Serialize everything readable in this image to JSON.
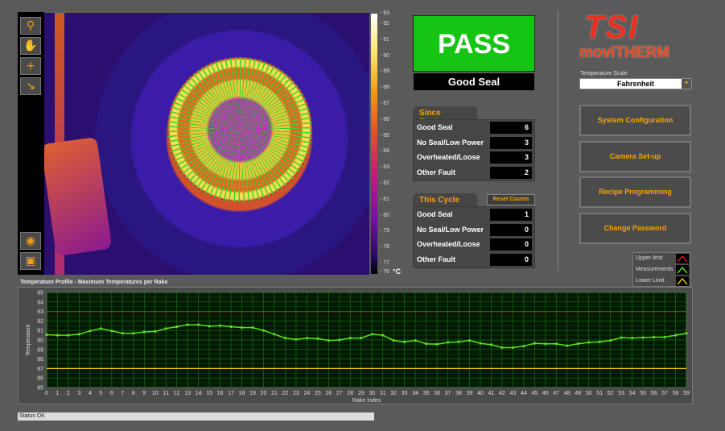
{
  "toolbar": {
    "tools": [
      "zoom-icon",
      "pan-hand-icon",
      "crosshair-icon",
      "zoom-fit-icon",
      "palette-icon",
      "snapshot-icon"
    ]
  },
  "colorbar": {
    "ticks": [
      "93",
      "92",
      "91",
      "90",
      "89",
      "88",
      "87",
      "86",
      "85",
      "84",
      "83",
      "82",
      "81",
      "80",
      "79",
      "78",
      "77",
      "76"
    ],
    "unit": "°C"
  },
  "result": {
    "status": "PASS",
    "detail": "Good Seal",
    "color": "#16c514"
  },
  "since_startup": {
    "title": "Since Startup",
    "rows": [
      {
        "label": "Good Seal",
        "value": "6"
      },
      {
        "label": "No Seal/Low Power",
        "value": "3"
      },
      {
        "label": "Overheated/Loose",
        "value": "3"
      },
      {
        "label": "Other Fault",
        "value": "2"
      }
    ]
  },
  "this_cycle": {
    "title": "This Cycle",
    "reset_label": "Reset Counts",
    "rows": [
      {
        "label": "Good Seal",
        "value": "1"
      },
      {
        "label": "No Seal/Low Power",
        "value": "0"
      },
      {
        "label": "Overheated/Loose",
        "value": "0"
      },
      {
        "label": "Other Fault",
        "value": "0"
      }
    ]
  },
  "logo": {
    "line1": "TSI",
    "line2": "moviTHERM"
  },
  "temperature_scale": {
    "label": "Temperature Scale",
    "value": "Fahrenheit"
  },
  "buttons": [
    "System Configuration",
    "Camera Set-up",
    "Recipe Programming",
    "Change Password"
  ],
  "legend": [
    {
      "label": "Upper limit",
      "color": "#e01010"
    },
    {
      "label": "Measurements",
      "color": "#5be01a"
    },
    {
      "label": "Lower Limit",
      "color": "#f0c000"
    }
  ],
  "status": "Status OK",
  "chart_data": {
    "type": "line",
    "title": "Temperature Profile - Maximum Temperatures per Rake",
    "xlabel": "Rake Index",
    "ylabel": "Temperature",
    "xlim": [
      0,
      59
    ],
    "ylim": [
      85,
      95
    ],
    "grid": true,
    "yticks": [
      85,
      86,
      87,
      88,
      89,
      90,
      91,
      92,
      93,
      94,
      95
    ],
    "x": [
      0,
      1,
      2,
      3,
      4,
      5,
      6,
      7,
      8,
      9,
      10,
      11,
      12,
      13,
      14,
      15,
      16,
      17,
      18,
      19,
      20,
      21,
      22,
      23,
      24,
      25,
      26,
      27,
      28,
      29,
      30,
      31,
      32,
      33,
      34,
      35,
      36,
      37,
      38,
      39,
      40,
      41,
      42,
      43,
      44,
      45,
      46,
      47,
      48,
      49,
      50,
      51,
      52,
      53,
      54,
      55,
      56,
      57,
      58,
      59
    ],
    "series": [
      {
        "name": "Measurements",
        "values": [
          90.55,
          90.5,
          90.5,
          90.6,
          90.95,
          91.2,
          90.95,
          90.7,
          90.7,
          90.85,
          90.9,
          91.2,
          91.4,
          91.6,
          91.6,
          91.45,
          91.5,
          91.4,
          91.3,
          91.3,
          91.0,
          90.6,
          90.2,
          90.05,
          90.2,
          90.15,
          89.95,
          90.0,
          90.2,
          90.2,
          90.6,
          90.5,
          89.95,
          89.8,
          89.95,
          89.6,
          89.55,
          89.75,
          89.8,
          89.95,
          89.65,
          89.5,
          89.2,
          89.2,
          89.35,
          89.65,
          89.6,
          89.6,
          89.4,
          89.6,
          89.75,
          89.8,
          89.95,
          90.25,
          90.2,
          90.25,
          90.3,
          90.3,
          90.5,
          90.7
        ]
      },
      {
        "name": "Upper limit",
        "constant": 93
      },
      {
        "name": "Lower Limit",
        "constant": 87
      }
    ]
  }
}
